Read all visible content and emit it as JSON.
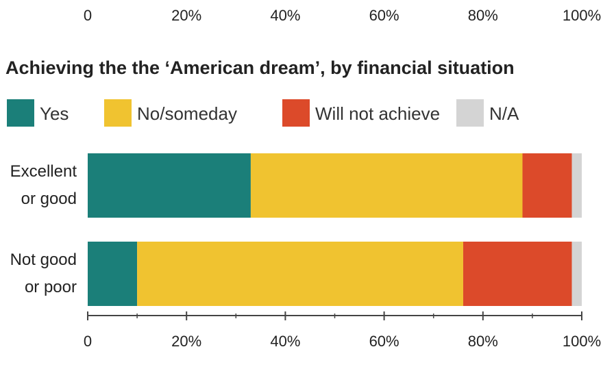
{
  "chart_data": {
    "type": "bar",
    "orientation": "horizontal",
    "stacked": true,
    "title": "Achieving the the ‘American dream’, by financial situation",
    "categories": [
      [
        "Excellent",
        "or good"
      ],
      [
        "Not good",
        "or poor"
      ]
    ],
    "series": [
      {
        "name": "Yes",
        "color": "#1b7f79",
        "values": [
          33,
          10
        ]
      },
      {
        "name": "No/someday",
        "color": "#f0c330",
        "values": [
          55,
          66
        ]
      },
      {
        "name": "Will not achieve",
        "color": "#dc4a2a",
        "values": [
          10,
          22
        ]
      },
      {
        "name": "N/A",
        "color": "#d4d4d4",
        "values": [
          2,
          2
        ]
      }
    ],
    "xlim": [
      0,
      100
    ],
    "x_ticks": [
      "0",
      "20%",
      "40%",
      "60%",
      "80%",
      "100%"
    ],
    "top_axis_ticks": [
      "0",
      "20%",
      "40%",
      "60%",
      "80%",
      "100%"
    ],
    "legend_placement": "top-left",
    "grid": false
  }
}
